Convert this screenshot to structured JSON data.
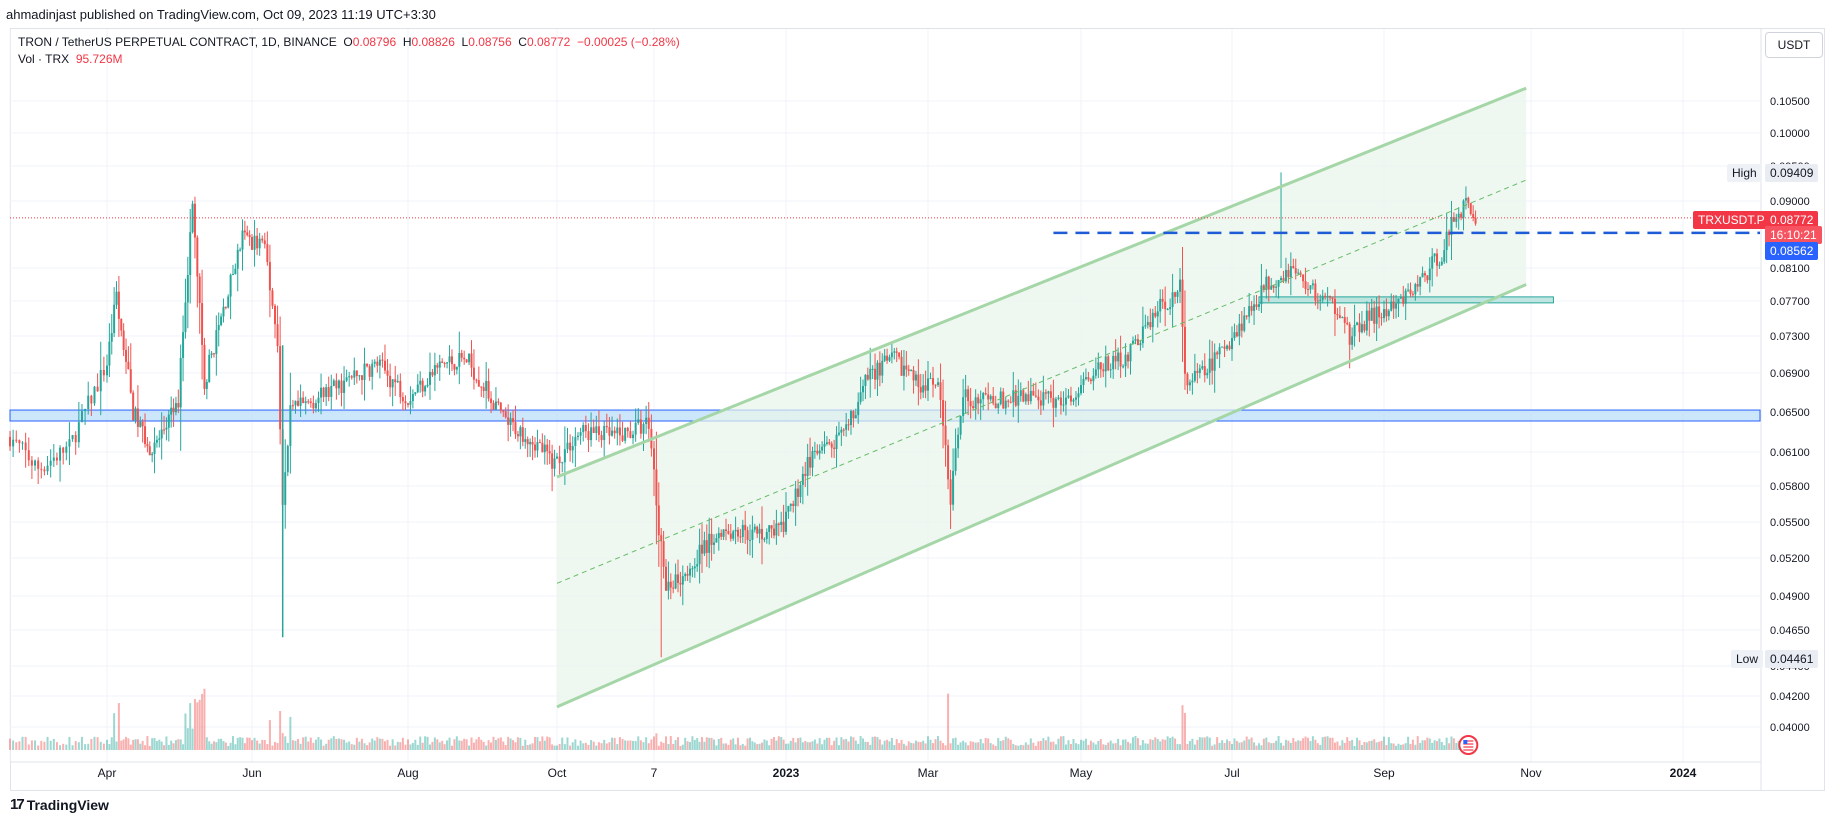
{
  "header": {
    "published_by": "ahmadinjast published on TradingView.com, Oct 09, 2023 11:19 UTC+3:30"
  },
  "legend": {
    "symbol": "TRON / TetherUS PERPETUAL CONTRACT, 1D, BINANCE",
    "open_label": "O",
    "open_value": "0.08796",
    "high_label": "H",
    "high_value": "0.08826",
    "low_label": "L",
    "low_value": "0.08756",
    "close_label": "C",
    "close_value": "0.08772",
    "change": "−0.00025 (−0.28%)",
    "volume_label": "Vol · TRX",
    "volume_value": "95.726M"
  },
  "currency": "USDT",
  "labels": {
    "high_text": "High",
    "high_value": "0.09409",
    "low_text": "Low",
    "low_value": "0.04461",
    "symbol_tag": "TRXUSDT.P",
    "last_price": "0.08772",
    "countdown": "16:10:21",
    "level_price": "0.08562"
  },
  "footer": {
    "brand": "TradingView",
    "logo_mark": "17"
  },
  "colors": {
    "up": "#26a69a",
    "down": "#ef5350",
    "channel": "#a5d6a7",
    "channel_fill": "#e8f5e9",
    "support_zone": "#bbdefb",
    "support_border": "#2962ff",
    "level_line": "#1e5bd6",
    "demand_zone": "#b2dfdb",
    "last_price": "#f23645"
  },
  "chart_data": {
    "type": "candlestick",
    "title": "TRON / TetherUS PERPETUAL CONTRACT, 1D, BINANCE",
    "x_tick_labels": [
      "Apr",
      "Jun",
      "Aug",
      "Oct",
      "7",
      "2023",
      "Mar",
      "May",
      "Jul",
      "Sep",
      "Nov",
      "2024"
    ],
    "y_tick_labels": [
      "0.10500",
      "0.10000",
      "0.09500",
      "0.09000",
      "0.08100",
      "0.07700",
      "0.07300",
      "0.06900",
      "0.06500",
      "0.06100",
      "0.05800",
      "0.05500",
      "0.05200",
      "0.04900",
      "0.04650",
      "0.04400",
      "0.04200",
      "0.04000"
    ],
    "ylim": [
      0.0395,
      0.1085
    ],
    "price_path": [
      [
        "2022-03-01",
        0.0625
      ],
      [
        "2022-03-10",
        0.0595
      ],
      [
        "2022-03-20",
        0.0615
      ],
      [
        "2022-04-01",
        0.07
      ],
      [
        "2022-04-05",
        0.0775
      ],
      [
        "2022-04-12",
        0.065
      ],
      [
        "2022-04-20",
        0.061
      ],
      [
        "2022-05-01",
        0.066
      ],
      [
        "2022-05-07",
        0.089
      ],
      [
        "2022-05-12",
        0.068
      ],
      [
        "2022-05-20",
        0.076
      ],
      [
        "2022-05-28",
        0.085
      ],
      [
        "2022-06-06",
        0.084
      ],
      [
        "2022-06-11",
        0.072
      ],
      [
        "2022-06-13",
        0.056
      ],
      [
        "2022-06-16",
        0.065
      ],
      [
        "2022-07-01",
        0.067
      ],
      [
        "2022-07-20",
        0.07
      ],
      [
        "2022-08-01",
        0.0665
      ],
      [
        "2022-08-15",
        0.07
      ],
      [
        "2022-08-25",
        0.0705
      ],
      [
        "2022-09-10",
        0.064
      ],
      [
        "2022-09-20",
        0.0625
      ],
      [
        "2022-09-30",
        0.06
      ],
      [
        "2022-10-10",
        0.063
      ],
      [
        "2022-10-25",
        0.0625
      ],
      [
        "2022-11-05",
        0.064
      ],
      [
        "2022-11-09",
        0.0545
      ],
      [
        "2022-11-12",
        0.0495
      ],
      [
        "2022-11-20",
        0.051
      ],
      [
        "2022-12-05",
        0.0545
      ],
      [
        "2022-12-20",
        0.054
      ],
      [
        "2022-12-31",
        0.0545
      ],
      [
        "2023-01-10",
        0.06
      ],
      [
        "2023-01-25",
        0.0625
      ],
      [
        "2023-02-05",
        0.069
      ],
      [
        "2023-02-15",
        0.0705
      ],
      [
        "2023-02-25",
        0.068
      ],
      [
        "2023-03-05",
        0.0675
      ],
      [
        "2023-03-10",
        0.057
      ],
      [
        "2023-03-15",
        0.0665
      ],
      [
        "2023-03-25",
        0.066
      ],
      [
        "2023-04-10",
        0.0665
      ],
      [
        "2023-04-25",
        0.066
      ],
      [
        "2023-05-05",
        0.069
      ],
      [
        "2023-05-20",
        0.071
      ],
      [
        "2023-06-01",
        0.076
      ],
      [
        "2023-06-10",
        0.0785
      ],
      [
        "2023-06-12",
        0.068
      ],
      [
        "2023-06-20",
        0.069
      ],
      [
        "2023-07-05",
        0.0745
      ],
      [
        "2023-07-15",
        0.079
      ],
      [
        "2023-07-25",
        0.081
      ],
      [
        "2023-08-05",
        0.0775
      ],
      [
        "2023-08-15",
        0.076
      ],
      [
        "2023-08-18",
        0.0725
      ],
      [
        "2023-08-25",
        0.075
      ],
      [
        "2023-09-05",
        0.076
      ],
      [
        "2023-09-15",
        0.079
      ],
      [
        "2023-09-25",
        0.083
      ],
      [
        "2023-10-01",
        0.0885
      ],
      [
        "2023-10-05",
        0.0895
      ],
      [
        "2023-10-09",
        0.0877
      ]
    ],
    "high": 0.09409,
    "low": 0.04461,
    "last_price": 0.08772,
    "horizontal_level": 0.08562,
    "support_zone": [
      0.0641,
      0.0652
    ],
    "demand_zone": [
      0.0768,
      0.0775
    ],
    "channel": {
      "upper": [
        [
          "2022-10-01",
          0.0588
        ],
        [
          "2023-10-30",
          0.107
        ]
      ],
      "lower": [
        [
          "2022-10-01",
          0.0413
        ],
        [
          "2023-10-30",
          0.079
        ]
      ],
      "middle": [
        [
          "2022-10-01",
          0.05
        ],
        [
          "2023-10-30",
          0.093
        ]
      ]
    }
  }
}
